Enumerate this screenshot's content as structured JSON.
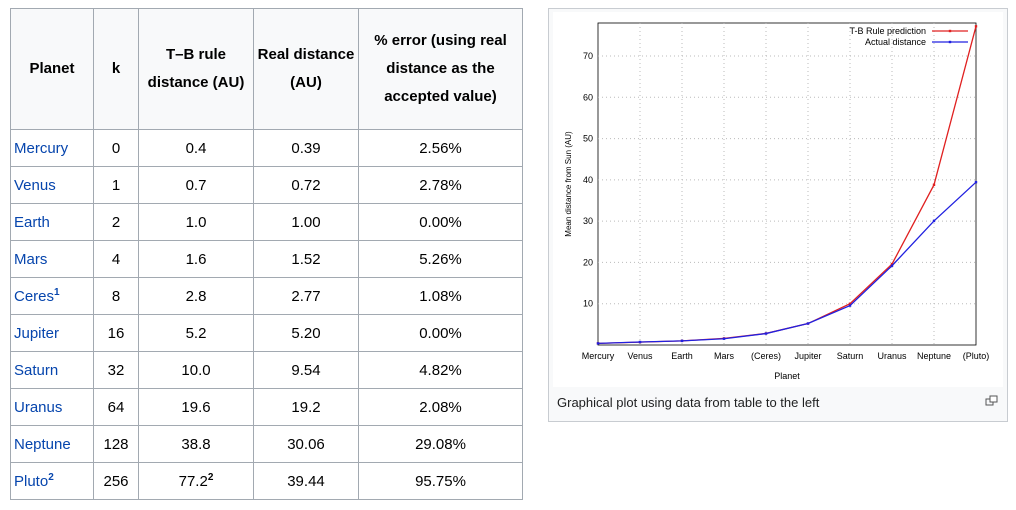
{
  "table": {
    "header": [
      "Planet",
      "k",
      "T–B rule distance (AU)",
      "Real distance (AU)",
      "% error (using real distance as the accepted value)"
    ],
    "rows": [
      [
        "Mercury",
        "0",
        "0.4",
        "0.39",
        "2.56%"
      ],
      [
        "Venus",
        "1",
        "0.7",
        "0.72",
        "2.78%"
      ],
      [
        "Earth",
        "2",
        "1.0",
        "1.00",
        "0.00%"
      ],
      [
        "Mars",
        "4",
        "1.6",
        "1.52",
        "5.26%"
      ],
      [
        {
          "text": "Ceres",
          "sup": "1"
        },
        "8",
        "2.8",
        "2.77",
        "1.08%"
      ],
      [
        "Jupiter",
        "16",
        "5.2",
        "5.20",
        "0.00%"
      ],
      [
        "Saturn",
        "32",
        "10.0",
        "9.54",
        "4.82%"
      ],
      [
        "Uranus",
        "64",
        "19.6",
        "19.2",
        "2.08%"
      ],
      [
        "Neptune",
        "128",
        "38.8",
        "30.06",
        "29.08%"
      ],
      [
        {
          "text": "Pluto",
          "sup": "2"
        },
        "256",
        {
          "text": "77.2",
          "sup": "2"
        },
        "39.44",
        "95.75%"
      ]
    ]
  },
  "chart_data": {
    "type": "line",
    "x_label": "Planet",
    "y_label": "Mean distance from Sun (AU)",
    "categories": [
      "Mercury",
      "Venus",
      "Earth",
      "Mars",
      "(Ceres)",
      "Jupiter",
      "Saturn",
      "Uranus",
      "Neptune",
      "(Pluto)"
    ],
    "series": [
      {
        "name": "T-B Rule prediction",
        "color": "#e02020",
        "values": [
          0.4,
          0.7,
          1.0,
          1.6,
          2.8,
          5.2,
          10.0,
          19.6,
          38.8,
          77.2
        ]
      },
      {
        "name": "Actual distance",
        "color": "#2020e0",
        "values": [
          0.39,
          0.72,
          1.0,
          1.52,
          2.77,
          5.2,
          9.54,
          19.2,
          30.06,
          39.44
        ]
      }
    ],
    "ylim": [
      0,
      78
    ],
    "yticks": [
      10,
      20,
      30,
      40,
      50,
      60,
      70
    ],
    "grid": true,
    "legend": "top-right"
  },
  "caption": "Graphical plot using data from table to the left"
}
